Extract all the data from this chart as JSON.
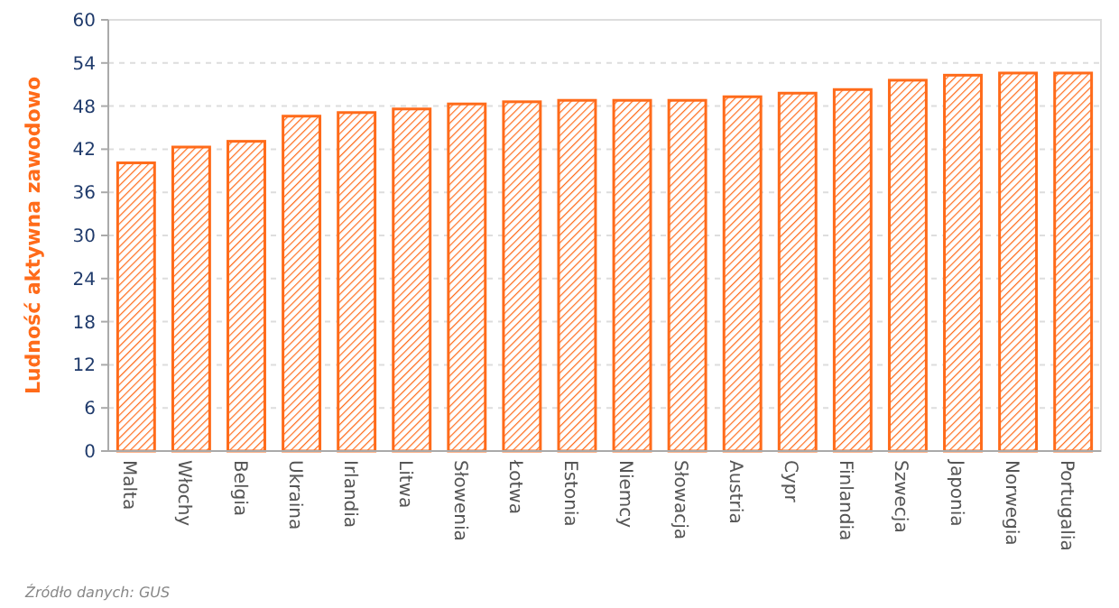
{
  "chart_data": {
    "type": "bar",
    "ylabel": "Ludność aktywna zawodowo",
    "categories": [
      "Malta",
      "Włochy",
      "Belgia",
      "Ukraina",
      "Irlandia",
      "Litwa",
      "Słowenia",
      "Łotwa",
      "Estonia",
      "Niemcy",
      "Słowacja",
      "Austria",
      "Cypr",
      "Finlandia",
      "Szwecja",
      "Japonia",
      "Norwegia",
      "Portugalia"
    ],
    "values": [
      40.1,
      42.3,
      43.1,
      46.6,
      47.1,
      47.6,
      48.3,
      48.6,
      48.8,
      48.8,
      48.8,
      49.3,
      49.8,
      50.3,
      51.6,
      52.3,
      52.6,
      52.6
    ],
    "color": "#ff6b1a",
    "ylim": [
      0,
      60
    ],
    "yticks": [
      0,
      6,
      12,
      18,
      24,
      30,
      36,
      42,
      48,
      54,
      60
    ],
    "grid": "y",
    "annotations": [
      "Źródło danych: GUS"
    ]
  }
}
